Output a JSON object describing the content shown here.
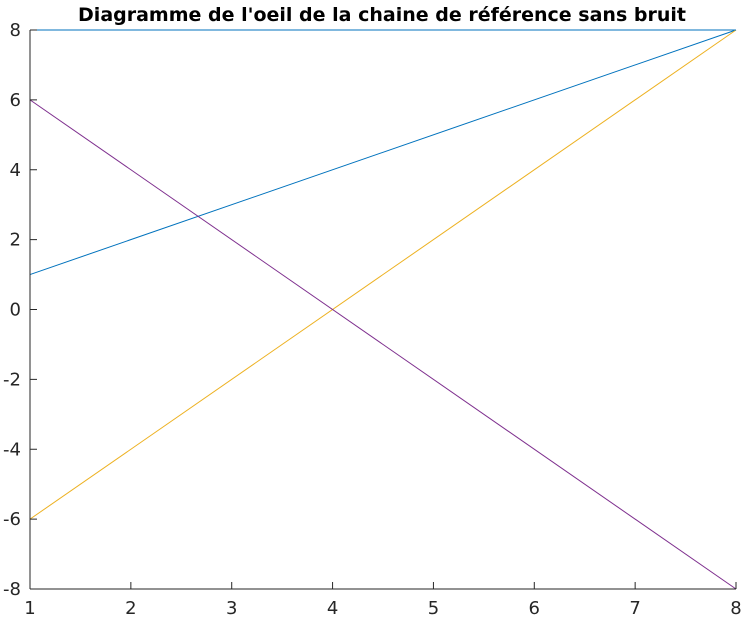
{
  "chart_data": {
    "type": "line",
    "title": "Diagramme de l'oeil de la chaine de référence sans bruit",
    "xlabel": "",
    "ylabel": "",
    "xlim": [
      1,
      8
    ],
    "ylim": [
      -8,
      8
    ],
    "xticks": [
      "1",
      "2",
      "3",
      "4",
      "5",
      "6",
      "7",
      "8"
    ],
    "yticks": [
      "-8",
      "-6",
      "-4",
      "-2",
      "0",
      "2",
      "4",
      "6",
      "8"
    ],
    "grid": false,
    "series": [
      {
        "color": "#0072bd",
        "x": [
          1,
          8
        ],
        "y": [
          1,
          8
        ]
      },
      {
        "color": "#edb120",
        "x": [
          1,
          8
        ],
        "y": [
          -6,
          8
        ]
      },
      {
        "color": "#7e2f8e",
        "x": [
          1,
          8
        ],
        "y": [
          6,
          -8
        ]
      },
      {
        "color": "#0072bd",
        "x": [
          1,
          8
        ],
        "y": [
          8,
          8
        ]
      },
      {
        "color": "#7e2f8e",
        "x": [
          1,
          8
        ],
        "y": [
          -8,
          -8
        ]
      }
    ]
  }
}
